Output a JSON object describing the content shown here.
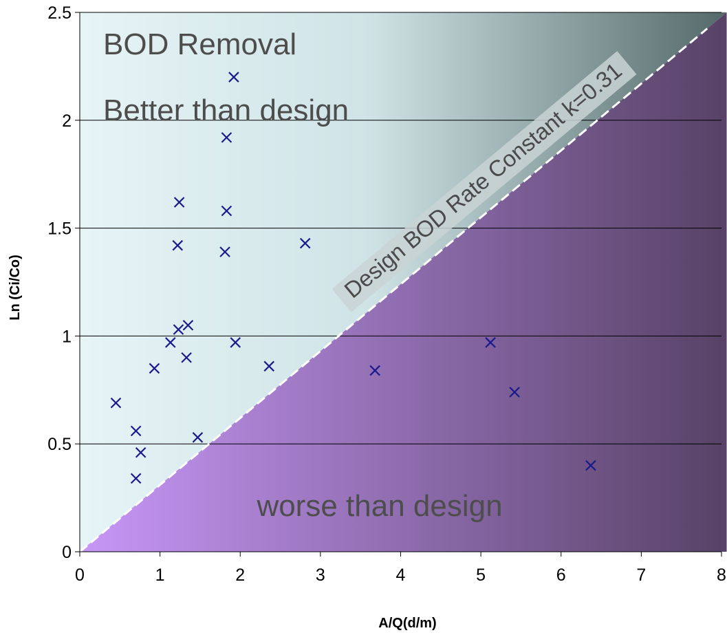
{
  "chart_data": {
    "type": "scatter",
    "title": "",
    "xlabel": "A/Q(d/m)",
    "ylabel": "Ln (Ci/Co)",
    "xlim": [
      0,
      8
    ],
    "ylim": [
      0,
      2.5
    ],
    "x_ticks": [
      "0",
      "1",
      "2",
      "3",
      "4",
      "5",
      "6",
      "7",
      "8"
    ],
    "y_ticks": [
      "0",
      "0.5",
      "1",
      "1.5",
      "2",
      "2.5"
    ],
    "grid": "horizontal",
    "marker": "x",
    "marker_color": "#1a1a8c",
    "points": [
      {
        "x": 0.45,
        "y": 0.69
      },
      {
        "x": 0.7,
        "y": 0.56
      },
      {
        "x": 0.76,
        "y": 0.46
      },
      {
        "x": 0.7,
        "y": 0.34
      },
      {
        "x": 0.93,
        "y": 0.85
      },
      {
        "x": 1.13,
        "y": 0.97
      },
      {
        "x": 1.23,
        "y": 1.03
      },
      {
        "x": 1.35,
        "y": 1.05
      },
      {
        "x": 1.33,
        "y": 0.9
      },
      {
        "x": 1.22,
        "y": 1.42
      },
      {
        "x": 1.24,
        "y": 1.62
      },
      {
        "x": 1.81,
        "y": 1.39
      },
      {
        "x": 1.83,
        "y": 1.58
      },
      {
        "x": 1.83,
        "y": 1.92
      },
      {
        "x": 1.92,
        "y": 2.2
      },
      {
        "x": 1.94,
        "y": 0.97
      },
      {
        "x": 1.47,
        "y": 0.53
      },
      {
        "x": 2.36,
        "y": 0.86
      },
      {
        "x": 2.81,
        "y": 1.43
      },
      {
        "x": 3.68,
        "y": 0.84
      },
      {
        "x": 5.12,
        "y": 0.97
      },
      {
        "x": 5.42,
        "y": 0.74
      },
      {
        "x": 6.37,
        "y": 0.4
      }
    ],
    "design_line": {
      "slope": 0.31,
      "label": "Design BOD Rate Constant k=0.31"
    },
    "annotations": {
      "upper_title": "BOD Removal",
      "upper_sub": "Better than design",
      "lower": "worse than design"
    },
    "colors": {
      "upper_light": "#e6f4f6",
      "upper_dark": "#54696a",
      "lower_light": "#c797f7",
      "lower_dark": "#574266"
    }
  }
}
